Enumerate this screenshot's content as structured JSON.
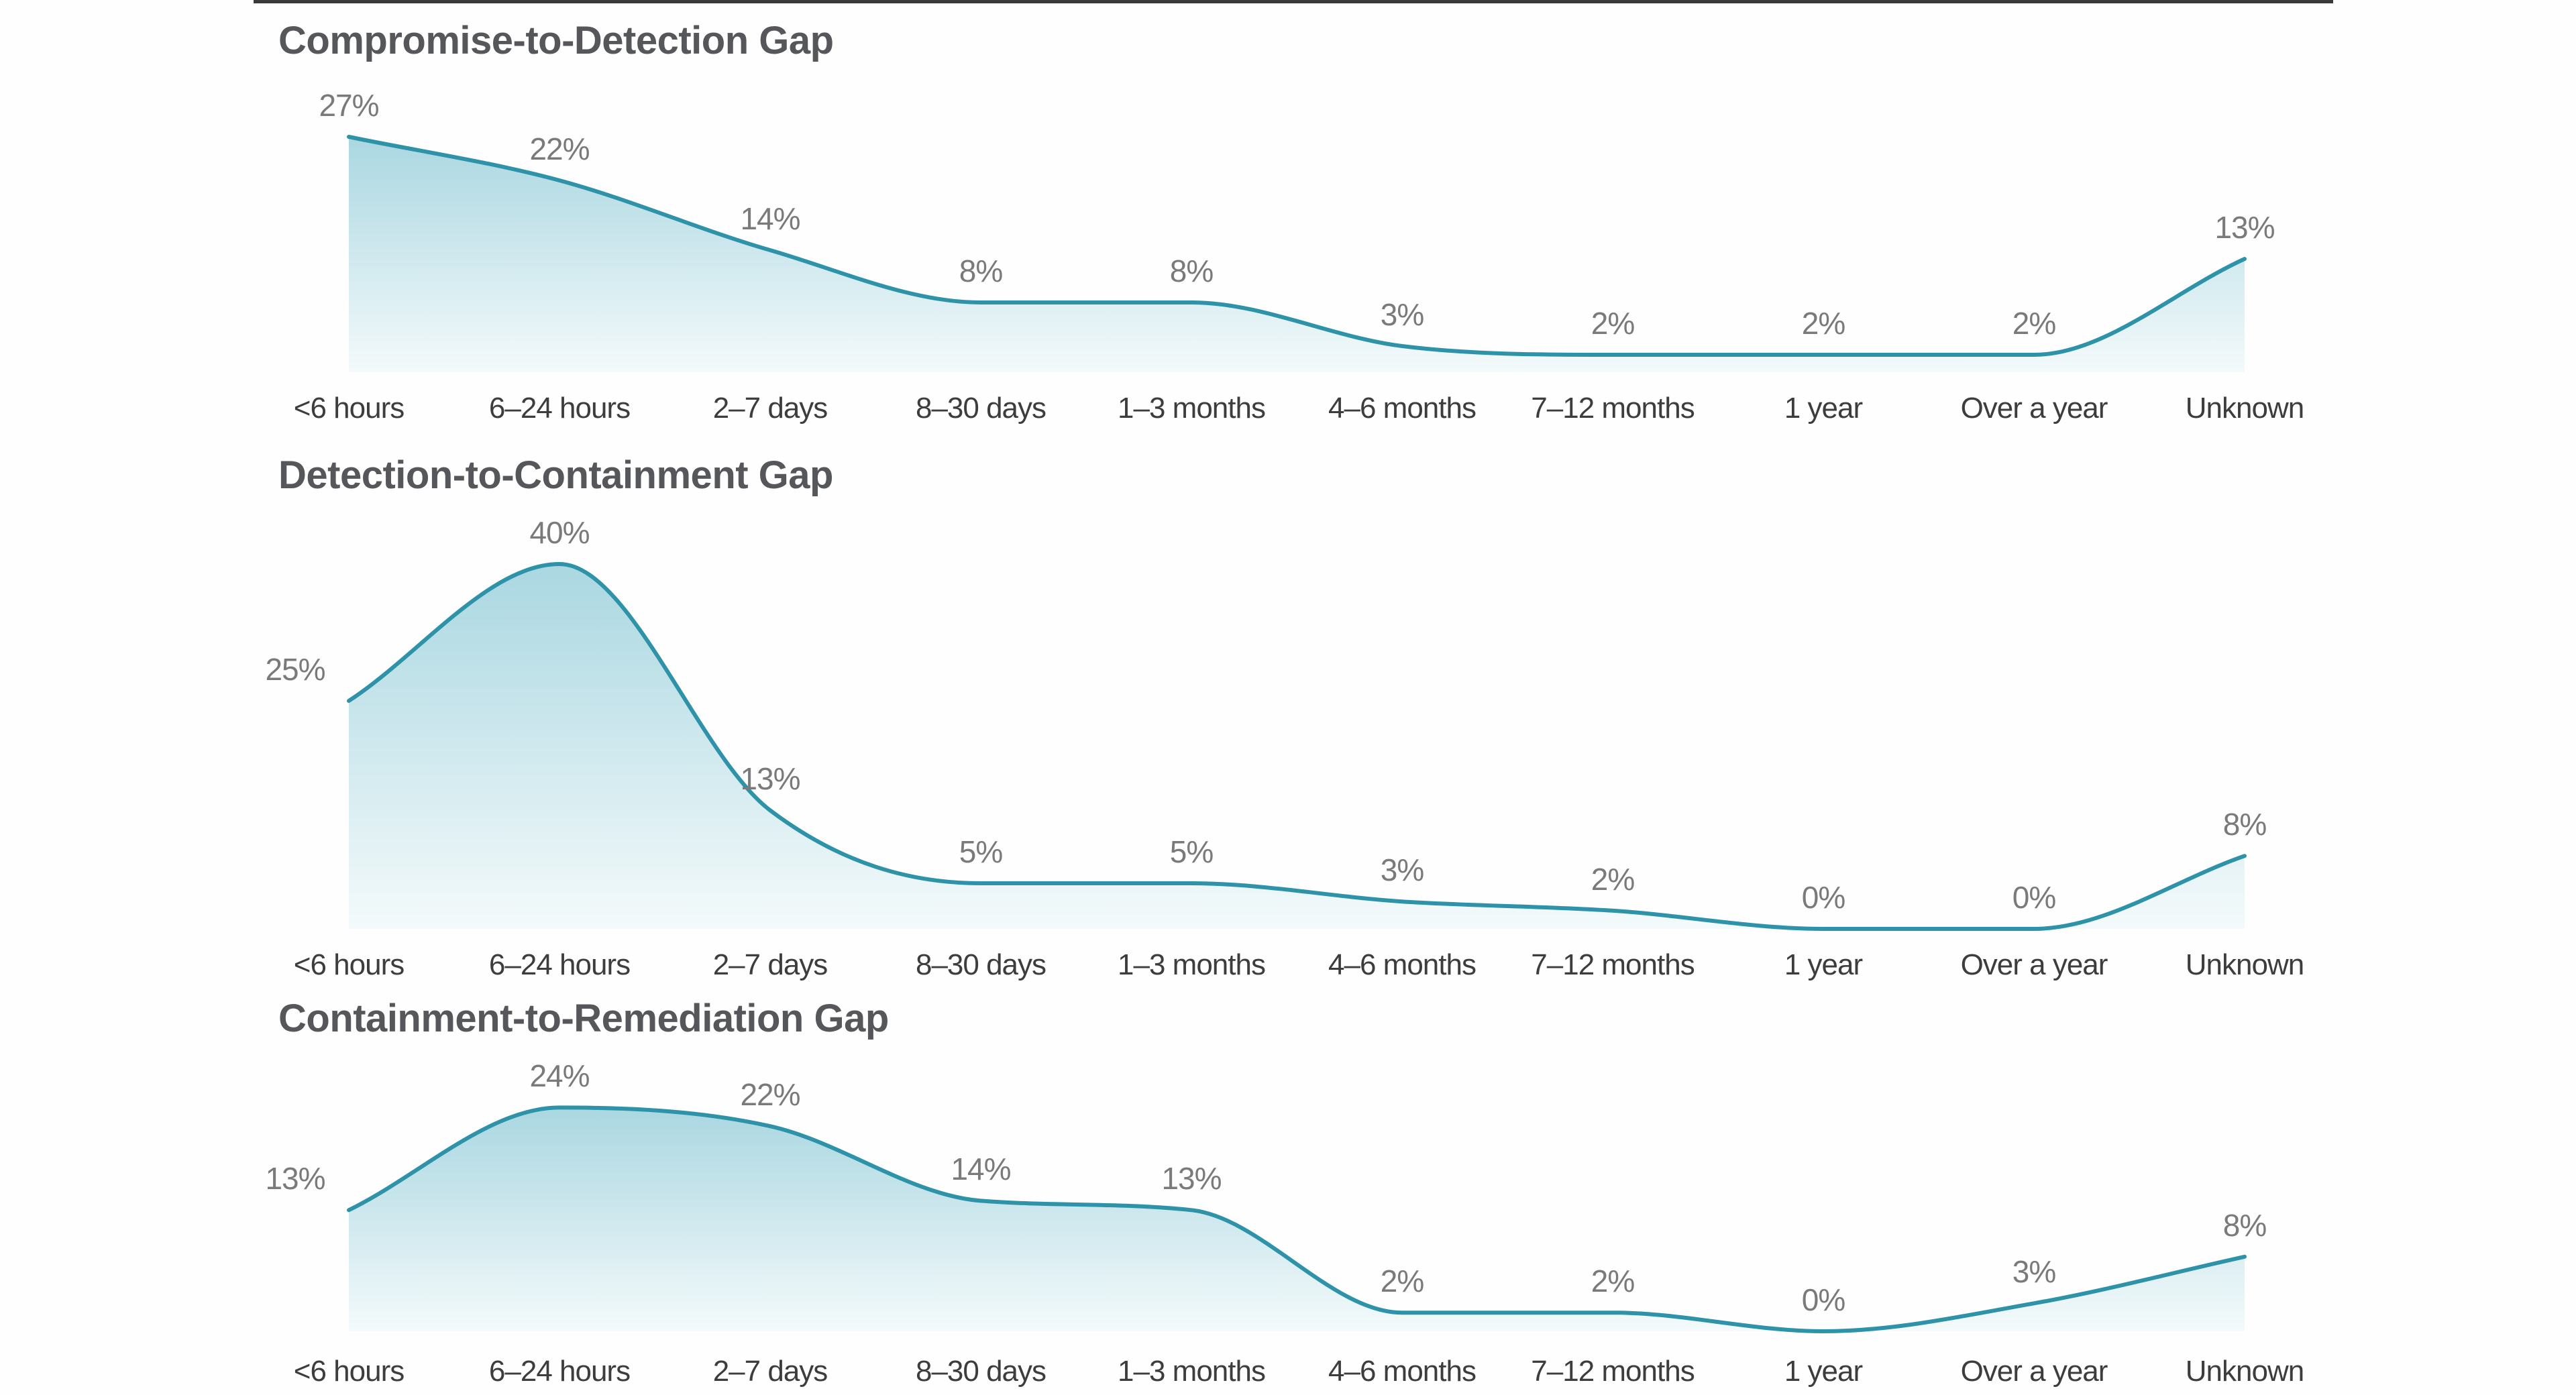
{
  "page": {
    "background": "#fefefe",
    "top_strip_color": "#181818"
  },
  "chart_data": [
    {
      "type": "area",
      "title": "Compromise-to-Detection Gap",
      "categories": [
        "<6 hours",
        "6–24 hours",
        "2–7 days",
        "8–30 days",
        "1–3 months",
        "4–6 months",
        "7–12 months",
        "1 year",
        "Over a year",
        "Unknown"
      ],
      "values": [
        27,
        22,
        14,
        8,
        8,
        3,
        2,
        2,
        2,
        13
      ],
      "value_labels": [
        "27%",
        "22%",
        "14%",
        "8%",
        "8%",
        "3%",
        "2%",
        "2%",
        "2%",
        "13%"
      ],
      "unit": "%",
      "ylim": [
        0,
        45
      ],
      "grid": false,
      "legend": false,
      "line_color": "#2e93a8",
      "fill_top": "#aad7e1",
      "fill_bottom": "#f4fafb",
      "title_color": "#56575a",
      "value_label_color": "#7a7a7a",
      "axis_label_color": "#3d3d3d"
    },
    {
      "type": "area",
      "title": "Detection-to-Containment Gap",
      "categories": [
        "<6 hours",
        "6–24 hours",
        "2–7 days",
        "8–30 days",
        "1–3 months",
        "4–6 months",
        "7–12 months",
        "1 year",
        "Over a year",
        "Unknown"
      ],
      "values": [
        25,
        40,
        13,
        5,
        5,
        3,
        2,
        0,
        0,
        8
      ],
      "value_labels": [
        "25%",
        "40%",
        "13%",
        "5%",
        "5%",
        "3%",
        "2%",
        "0%",
        "0%",
        "8%"
      ],
      "unit": "%",
      "ylim": [
        0,
        45
      ],
      "grid": false,
      "legend": false,
      "line_color": "#2e93a8",
      "fill_top": "#aad7e1",
      "fill_bottom": "#f4fafb",
      "title_color": "#56575a",
      "value_label_color": "#7a7a7a",
      "axis_label_color": "#3d3d3d"
    },
    {
      "type": "area",
      "title": "Containment-to-Remediation Gap",
      "categories": [
        "<6 hours",
        "6–24 hours",
        "2–7 days",
        "8–30 days",
        "1–3 months",
        "4–6 months",
        "7–12 months",
        "1 year",
        "Over a year",
        "Unknown"
      ],
      "values": [
        13,
        24,
        22,
        14,
        13,
        2,
        2,
        0,
        3,
        8
      ],
      "value_labels": [
        "13%",
        "24%",
        "22%",
        "14%",
        "13%",
        "2%",
        "2%",
        "0%",
        "3%",
        "8%"
      ],
      "unit": "%",
      "ylim": [
        0,
        45
      ],
      "grid": false,
      "legend": false,
      "line_color": "#2e93a8",
      "fill_top": "#aad7e1",
      "fill_bottom": "#f4fafb",
      "title_color": "#56575a",
      "value_label_color": "#7a7a7a",
      "axis_label_color": "#3d3d3d"
    }
  ]
}
